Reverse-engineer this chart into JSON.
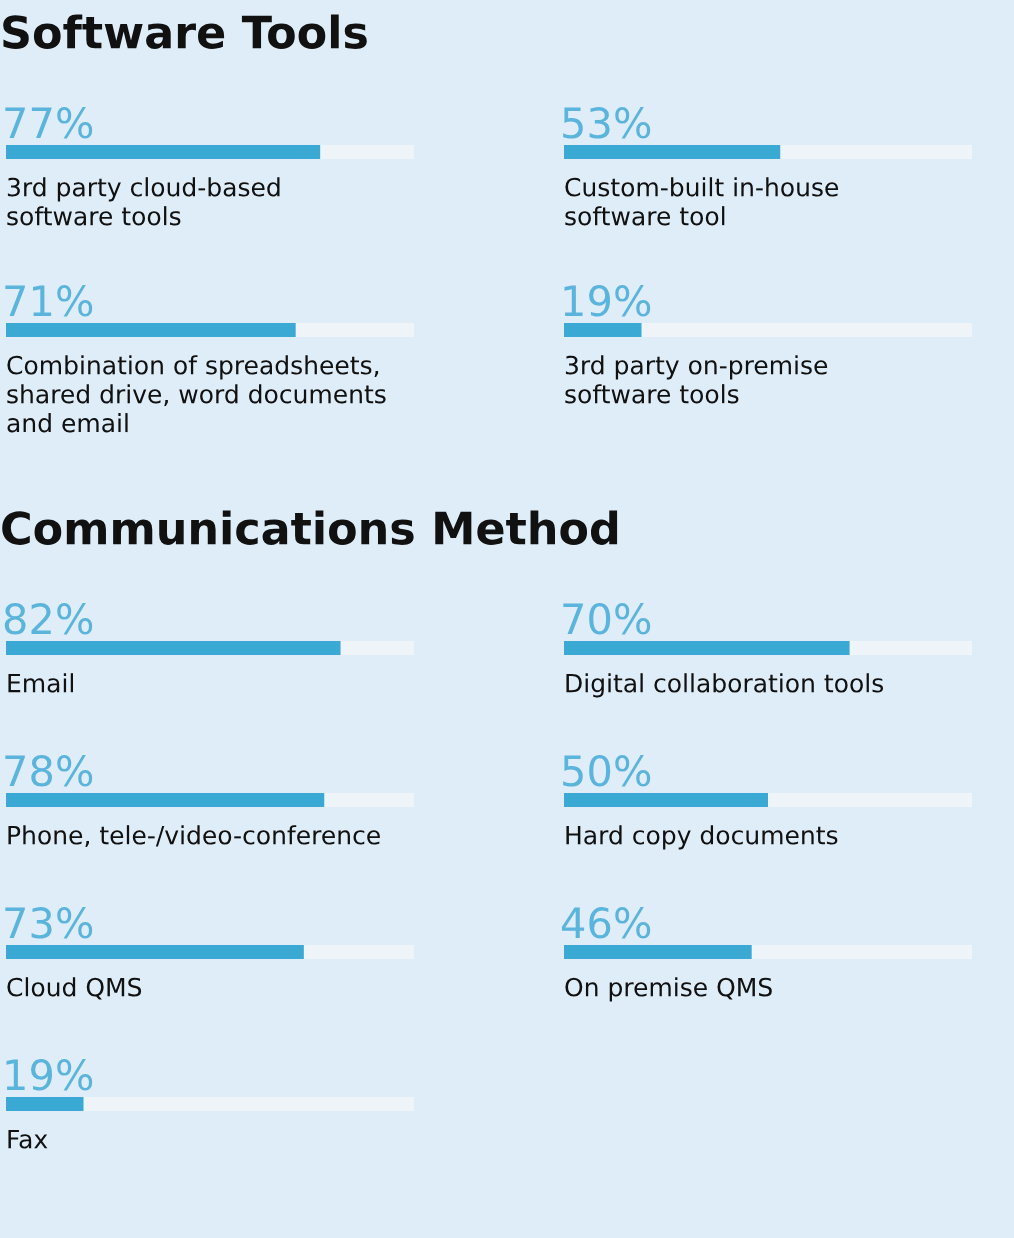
{
  "chart_data": [
    {
      "type": "bar",
      "orientation": "horizontal",
      "title": "Software Tools",
      "categories": [
        "3rd party cloud-based\nsoftware tools",
        "Combination of spreadsheets,\nshared drive, word documents\nand email"
      ],
      "values": [
        77,
        71
      ],
      "value_labels": [
        "77%",
        "71%"
      ],
      "color": "#3aa9d3",
      "xlim": [
        0,
        100
      ],
      "tick_labels": false
    },
    {
      "type": "bar",
      "orientation": "horizontal",
      "categories": [
        "Custom-built in-house\nsoftware tool",
        "3rd party on-premise\nsoftware tools"
      ],
      "values": [
        53,
        19
      ],
      "value_labels": [
        "53%",
        "19%"
      ],
      "color": "#3aa9d3",
      "xlim": [
        0,
        100
      ],
      "tick_labels": false
    },
    {
      "type": "bar",
      "orientation": "horizontal",
      "title": "Communications Method",
      "categories": [
        "Email",
        "Phone, tele-/video-conference",
        "Cloud QMS",
        "Fax"
      ],
      "values": [
        82,
        78,
        73,
        19
      ],
      "value_labels": [
        "82%",
        "78%",
        "73%",
        "19%"
      ],
      "color": "#3aa9d3",
      "xlim": [
        0,
        100
      ],
      "tick_labels": false
    },
    {
      "type": "bar",
      "orientation": "horizontal",
      "categories": [
        "Digital collaboration tools",
        "Hard copy documents",
        "On premise QMS"
      ],
      "values": [
        70,
        50,
        46
      ],
      "value_labels": [
        "70%",
        "50%",
        "46%"
      ],
      "color": "#3aa9d3",
      "xlim": [
        0,
        100
      ],
      "tick_labels": false
    }
  ]
}
